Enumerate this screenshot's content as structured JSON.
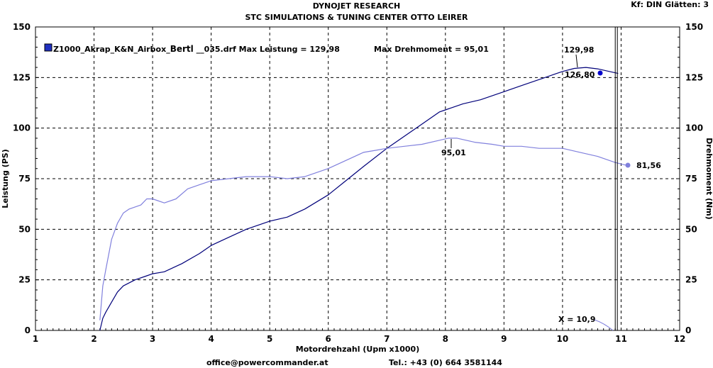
{
  "header": {
    "title": "DYNOJET RESEARCH",
    "subtitle": "STC SIMULATIONS & TUNING CENTER OTTO LEIRER",
    "settings": "Kf: DIN  Glätten: 3"
  },
  "footer": {
    "email": "office@powercommander.at",
    "phone": "Tel.: +43 (0) 664 3581144"
  },
  "colors": {
    "power_line": "#00007a",
    "torque_line": "#8080dd",
    "grid": "#000000",
    "marker": "#0000cc"
  },
  "chart_data": {
    "type": "line",
    "xlabel": "Motordrehzahl (Upm x1000)",
    "ylabel_left": "Leistung (PS)",
    "ylabel_right": "Drehmoment (Nm)",
    "xlim": [
      1,
      12
    ],
    "ylim": [
      0,
      150
    ],
    "x_ticks": [
      "1",
      "2",
      "3",
      "4",
      "5",
      "6",
      "7",
      "8",
      "9",
      "10",
      "11",
      "12"
    ],
    "y_ticks": [
      "0",
      "25",
      "50",
      "75",
      "100",
      "125",
      "150"
    ],
    "grid": true,
    "legend": {
      "prefix": "Z1000_Akrap_K&N_Airbox_",
      "bold": "Bertl",
      "suffix": " __035.drf Max Leistung = 129,98",
      "torque": "Max Drehmoment = 95,01",
      "placement": "top-left"
    },
    "series": [
      {
        "key": "power",
        "x": [
          2.1,
          2.15,
          2.2,
          2.3,
          2.4,
          2.5,
          2.7,
          2.9,
          3.0,
          3.2,
          3.5,
          3.8,
          4.0,
          4.3,
          4.6,
          5.0,
          5.3,
          5.6,
          6.0,
          6.3,
          6.6,
          7.0,
          7.3,
          7.6,
          7.9,
          8.0,
          8.3,
          8.6,
          9.0,
          9.3,
          9.6,
          9.9,
          10.0,
          10.2,
          10.4,
          10.6,
          10.8,
          10.95
        ],
        "values": [
          0,
          6,
          9,
          14,
          19,
          22,
          25,
          27,
          28,
          29,
          33,
          38,
          42,
          46,
          50,
          54,
          56,
          60,
          67,
          74,
          81,
          90,
          96,
          102,
          108,
          109,
          112,
          114,
          118,
          121,
          124,
          127,
          128,
          129.5,
          129.98,
          129.3,
          128,
          127
        ]
      },
      {
        "key": "torque",
        "x": [
          2.1,
          2.15,
          2.2,
          2.3,
          2.4,
          2.5,
          2.6,
          2.8,
          2.9,
          3.0,
          3.2,
          3.4,
          3.6,
          3.8,
          4.0,
          4.3,
          4.6,
          5.0,
          5.3,
          5.6,
          6.0,
          6.3,
          6.6,
          6.8,
          7.0,
          7.3,
          7.6,
          7.9,
          8.05,
          8.2,
          8.5,
          8.8,
          9.0,
          9.3,
          9.6,
          10.0,
          10.3,
          10.6,
          10.9,
          11.1
        ],
        "values": [
          5,
          22,
          30,
          45,
          53,
          58,
          60,
          62,
          65,
          65,
          63,
          65,
          70,
          72,
          74,
          75,
          76,
          76,
          75,
          76,
          80,
          84,
          88,
          89,
          90,
          91,
          92,
          94,
          95.01,
          95,
          93,
          92,
          91,
          91,
          90,
          90,
          88,
          86,
          83,
          81.56
        ]
      }
    ],
    "annotations": {
      "max_power": "129,98",
      "power_end": "126,80",
      "max_torque": "95,01",
      "torque_end": "81,56",
      "cursor": "X = 10,9"
    },
    "cursor_x": 10.9
  }
}
